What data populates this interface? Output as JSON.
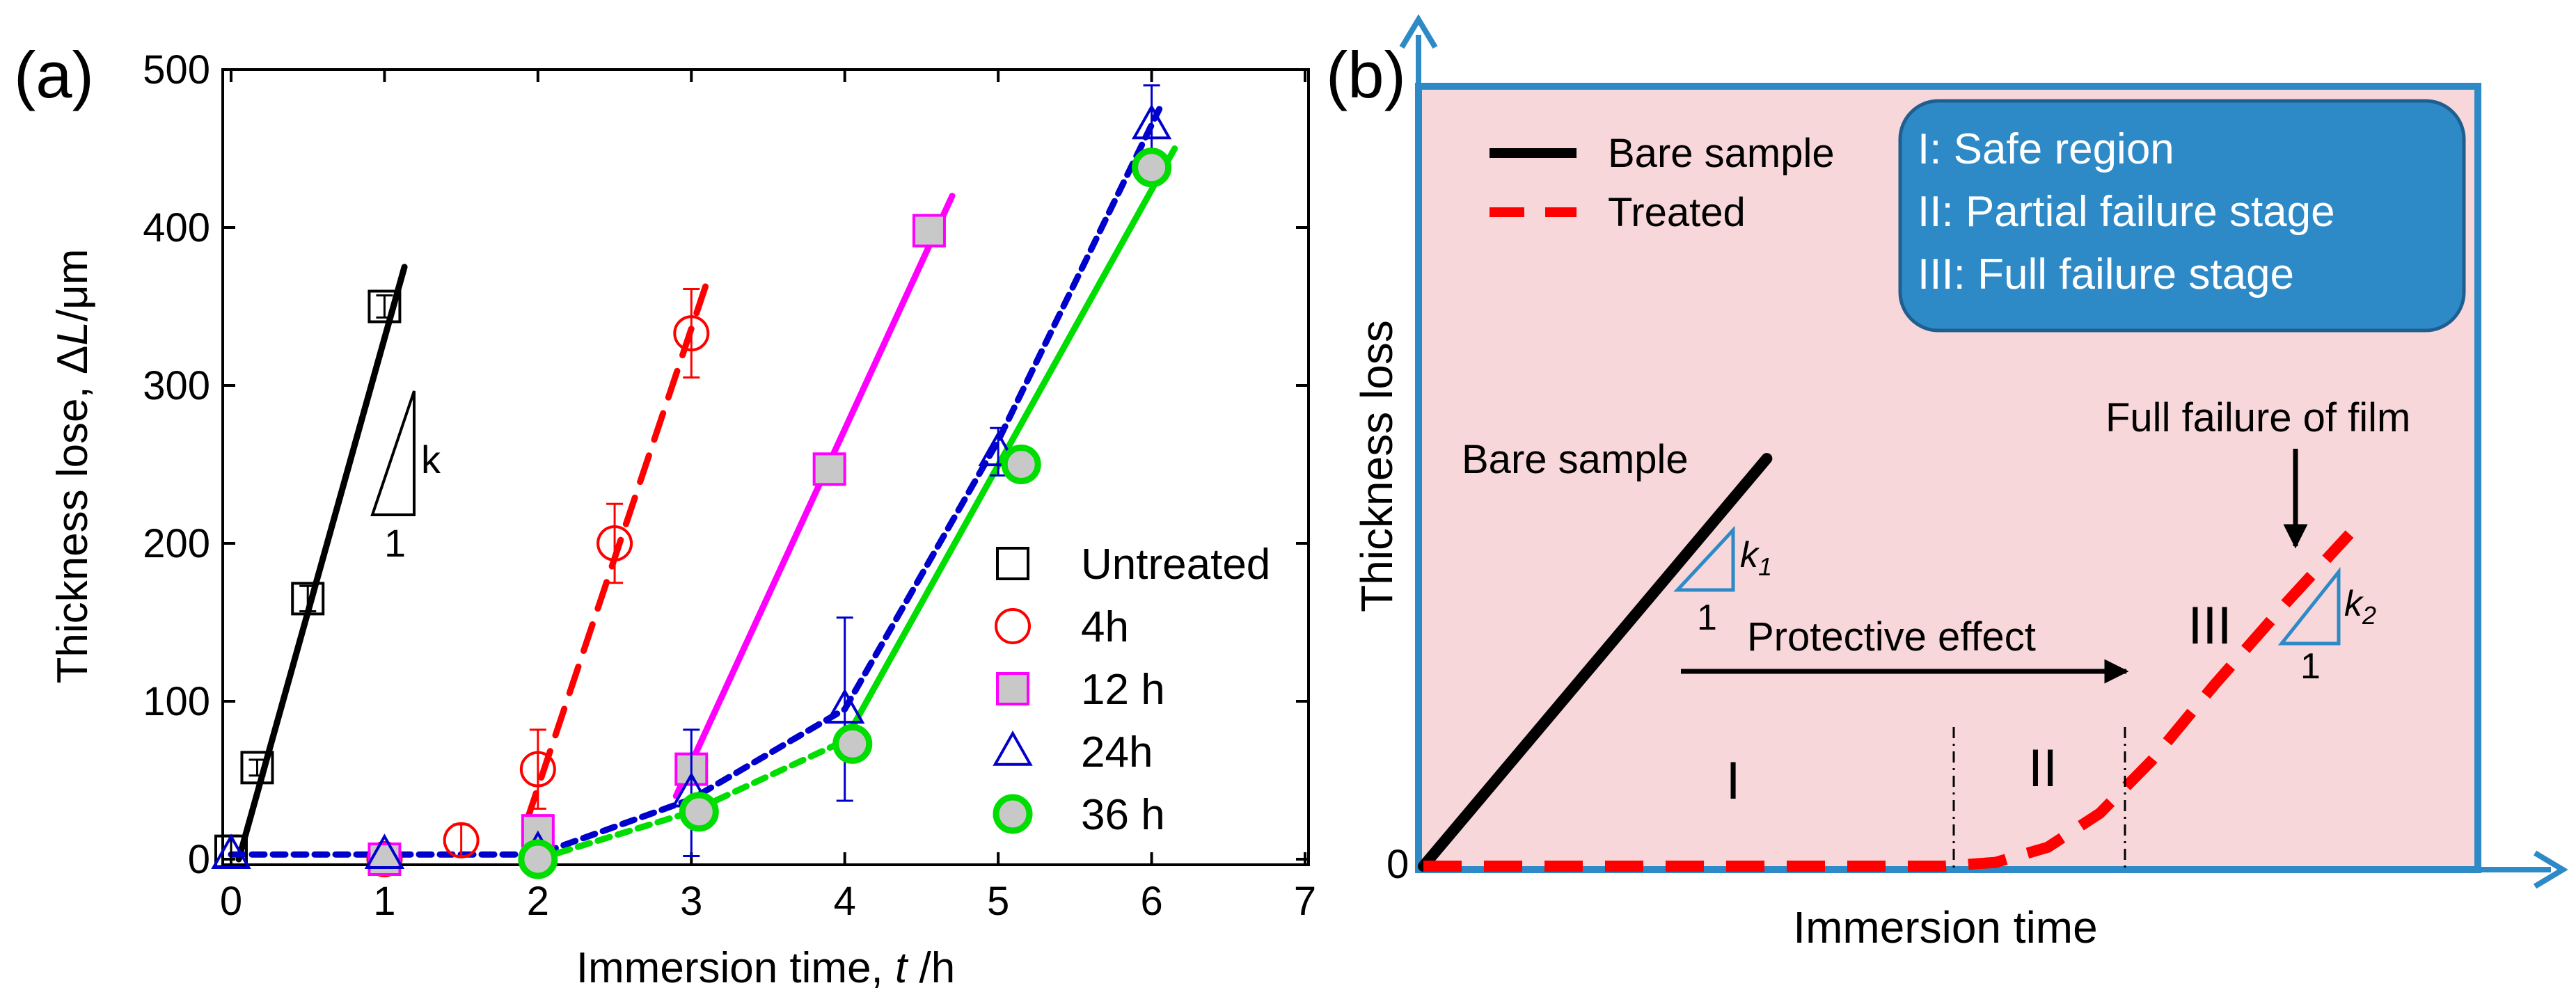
{
  "chart_data": [
    {
      "panel_label": "(a)",
      "type": "scatter",
      "xlabel_prefix": "Immersion time, ",
      "xlabel_var": "t",
      "xlabel_suffix": " /h",
      "ylabel_prefix": "Thickness lose, ",
      "ylabel_delta": "Δ",
      "ylabel_var": "L",
      "ylabel_suffix": "/μm",
      "xlim": [
        0,
        7
      ],
      "ylim": [
        0,
        500
      ],
      "xticks": [
        "0",
        "1",
        "2",
        "3",
        "4",
        "5",
        "6",
        "7"
      ],
      "yticks": [
        "0",
        "100",
        "200",
        "300",
        "400",
        "500"
      ],
      "slope_label_k": "k",
      "slope_label_1": "1",
      "series": [
        {
          "name": "Untreated",
          "marker": "square",
          "color": "#000000",
          "fill": "none",
          "x": [
            0.0,
            0.17,
            0.5,
            1.0
          ],
          "y": [
            5,
            58,
            165,
            350
          ],
          "yerr": [
            10,
            5,
            8,
            7
          ],
          "fit": {
            "x": [
              0.05,
              1.13
            ],
            "y": [
              0,
              375
            ],
            "style": "solid",
            "color": "#000000"
          }
        },
        {
          "name": "4h",
          "marker": "circle",
          "color": "#ff0000",
          "fill": "none",
          "x": [
            1.0,
            1.5,
            2.0,
            2.5,
            3.0
          ],
          "y": [
            0,
            12,
            57,
            200,
            333
          ],
          "yerr": [
            0,
            10,
            25,
            25,
            28
          ],
          "fit": {
            "x": [
              1.93,
              3.1
            ],
            "y": [
              25,
              365
            ],
            "style": "dash",
            "color": "#ff0000"
          }
        },
        {
          "name": "12 h",
          "marker": "square",
          "color": "#ff00ff",
          "fill": "#c8c8c8",
          "x": [
            1.0,
            2.0,
            3.0,
            3.9,
            4.55
          ],
          "y": [
            0,
            18,
            57,
            247,
            398
          ],
          "yerr": [
            0,
            5,
            5,
            5,
            5
          ],
          "fit": {
            "x": [
              2.9,
              4.7
            ],
            "y": [
              40,
              420
            ],
            "style": "solid",
            "color": "#ff00ff"
          }
        },
        {
          "name": "24h",
          "marker": "triangle",
          "color": "#0000cc",
          "fill": "none",
          "x": [
            0.0,
            1.0,
            2.0,
            3.0,
            4.0,
            5.0,
            6.0
          ],
          "y": [
            3,
            3,
            5,
            42,
            95,
            258,
            465
          ],
          "yerr": [
            0,
            0,
            5,
            40,
            58,
            15,
            25
          ],
          "fit": {
            "x": [
              0.0,
              2.0,
              3.0,
              4.0,
              5.0,
              6.05
            ],
            "y": [
              3,
              3,
              38,
              95,
              265,
              475
            ],
            "style": "dot",
            "color": "#0000cc"
          }
        },
        {
          "name": "36 h",
          "marker": "circle",
          "color": "#00dd00",
          "fill": "#c8c8c8",
          "x": [
            2.0,
            3.05,
            4.05,
            5.15,
            6.0
          ],
          "y": [
            0,
            30,
            73,
            250,
            438
          ],
          "yerr": [
            0,
            5,
            5,
            5,
            5
          ],
          "fit_dot": {
            "x": [
              2.0,
              3.0,
              4.0
            ],
            "y": [
              0,
              30,
              75
            ],
            "style": "dot",
            "color": "#00dd00"
          },
          "fit": {
            "x": [
              4.0,
              6.15
            ],
            "y": [
              75,
              450
            ],
            "style": "solid",
            "color": "#00dd00"
          }
        }
      ]
    },
    {
      "panel_label": "(b)",
      "type": "line",
      "xlabel": "Immersion time",
      "ylabel": "Thickness loss",
      "origin_label": "0",
      "xlim": [
        0,
        100
      ],
      "ylim": [
        0,
        100
      ],
      "background": "#f8d7da",
      "frame_color": "#2e8ac7",
      "legend": [
        {
          "name": "Bare sample",
          "style": "solid",
          "color": "#000000"
        },
        {
          "name": "Treated",
          "style": "dash",
          "color": "#ff0000"
        }
      ],
      "info_box": {
        "fill": "#2e8ac7",
        "lines": [
          "I:   Safe region",
          "II:  Partial failure stage",
          "III: Full failure stage"
        ]
      },
      "series": [
        {
          "name": "Bare sample",
          "x": [
            0,
            33
          ],
          "y": [
            0,
            54
          ]
        },
        {
          "name": "Treated",
          "x": [
            0,
            50,
            55,
            60,
            65,
            70,
            76,
            83,
            89
          ],
          "y": [
            0,
            0,
            0.5,
            2.5,
            7,
            14,
            24,
            35,
            44
          ]
        }
      ],
      "dividers_x": [
        50,
        65
      ],
      "region_labels": [
        "I",
        "II",
        "III"
      ],
      "annotations": {
        "bare_sample": "Bare sample",
        "protective_effect": "Protective effect",
        "full_failure": "Full failure of film",
        "k1_k": "k",
        "k1_sub": "1",
        "k1_one": "1",
        "k2_k": "k",
        "k2_sub": "2",
        "k2_one": "1"
      }
    }
  ]
}
